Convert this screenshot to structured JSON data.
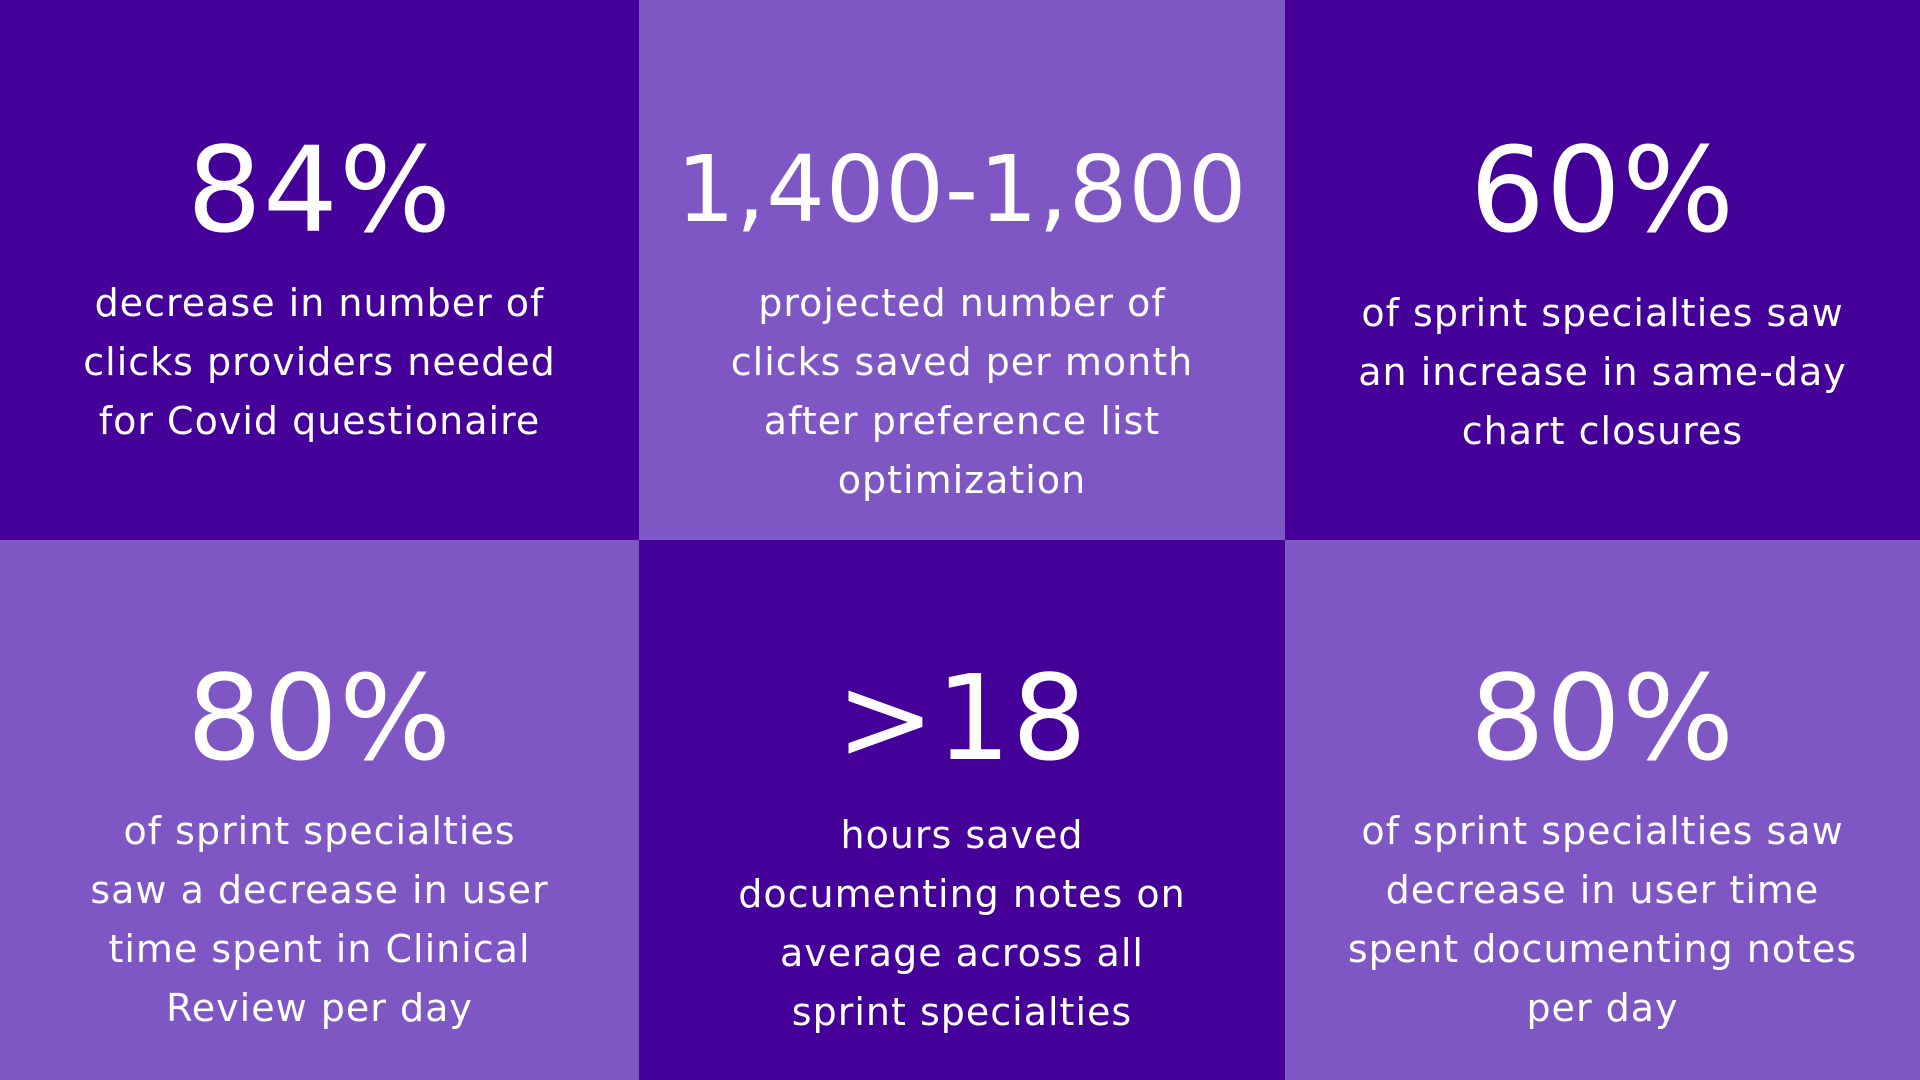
{
  "colors": {
    "dark": "#440099",
    "light": "#7E57C5",
    "text": "#FFFFFF"
  },
  "stats": [
    {
      "value": "84%",
      "lines": [
        "decrease in number of",
        "clicks providers needed",
        "for Covid questionaire"
      ]
    },
    {
      "value": "1,400-1,800",
      "lines": [
        "projected number of",
        "clicks saved per month",
        "after preference list",
        "optimization"
      ]
    },
    {
      "value": "60%",
      "lines": [
        "of sprint specialties saw",
        "an increase in same-day",
        "chart closures"
      ]
    },
    {
      "value": "80%",
      "lines": [
        "of sprint specialties",
        "saw a decrease in user",
        "time spent in Clinical",
        "Review per day"
      ]
    },
    {
      "value": ">18",
      "lines": [
        "hours saved",
        "documenting notes on",
        "average across all",
        "sprint specialties"
      ]
    },
    {
      "value": "80%",
      "lines": [
        "of sprint specialties saw",
        "decrease in user time",
        "spent documenting notes",
        "per day"
      ]
    }
  ]
}
